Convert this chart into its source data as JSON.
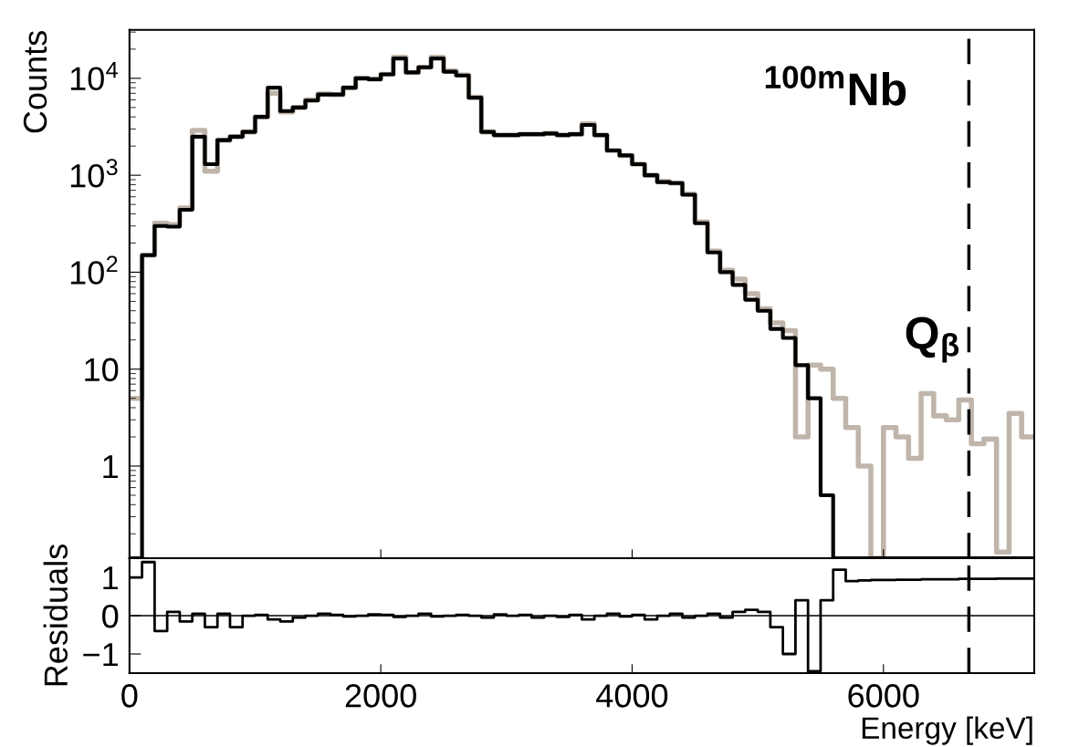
{
  "chart_data": [
    {
      "type": "histogram",
      "ylabel": "Counts",
      "log": "y",
      "tick_labels": "y",
      "grid": false,
      "legend": false,
      "bins": [
        0,
        100,
        200,
        300,
        400,
        500,
        600,
        700,
        800,
        900,
        1000,
        1100,
        1200,
        1300,
        1400,
        1500,
        1600,
        1700,
        1800,
        1900,
        2000,
        2100,
        2200,
        2300,
        2400,
        2500,
        2600,
        2700,
        2800,
        2900,
        3000,
        3100,
        3200,
        3300,
        3400,
        3500,
        3600,
        3700,
        3800,
        3900,
        4000,
        4100,
        4200,
        4300,
        4400,
        4500,
        4600,
        4700,
        4800,
        4900,
        5000,
        5100,
        5200,
        5300,
        5400,
        5500,
        5600,
        5700,
        5800,
        5900,
        6000,
        6100,
        6200,
        6300,
        6400,
        6500,
        6600,
        6700,
        6800,
        6900,
        7000,
        7100,
        7200
      ],
      "series": [
        {
          "color": "#c0b5aa",
          "values": [
            5,
            150,
            320,
            310,
            460,
            2900,
            1100,
            2300,
            2500,
            2800,
            4000,
            7000,
            4500,
            5000,
            6000,
            6900,
            6800,
            8000,
            10000,
            9800,
            11000,
            16500,
            11500,
            13000,
            16500,
            11900,
            10800,
            6400,
            2800,
            2600,
            2600,
            2650,
            2650,
            2700,
            2600,
            2650,
            3400,
            2600,
            1800,
            1600,
            1300,
            1000,
            860,
            830,
            640,
            330,
            165,
            105,
            85,
            60,
            42,
            30,
            25,
            2,
            11,
            10,
            5,
            2.5,
            1.0,
            null,
            2.5,
            2.0,
            1.2,
            5.6,
            3.3,
            3.0,
            4.8,
            1.7,
            1.9,
            0.13,
            3.5,
            2.0
          ]
        },
        {
          "color": "#000000",
          "values": [
            null,
            150,
            300,
            295,
            440,
            2500,
            1300,
            2300,
            2500,
            2800,
            4000,
            8000,
            4600,
            5000,
            5900,
            6800,
            6800,
            8000,
            10000,
            9800,
            11000,
            16000,
            11500,
            13000,
            16000,
            11700,
            10700,
            6300,
            2800,
            2600,
            2600,
            2650,
            2650,
            2700,
            2600,
            2650,
            3300,
            2600,
            1800,
            1600,
            1300,
            1000,
            850,
            830,
            630,
            320,
            160,
            100,
            74,
            52,
            40,
            26,
            21,
            11,
            5,
            0.5,
            null,
            null,
            null,
            null,
            null,
            null,
            null,
            null,
            null,
            null,
            null,
            null,
            null,
            null,
            null,
            null
          ]
        }
      ],
      "xlim": [
        0,
        7200
      ],
      "xticks": [
        0,
        2000,
        4000,
        6000
      ],
      "ylim": [
        0.112,
        31600
      ],
      "yticks": [
        1,
        10,
        {
          "value": 100,
          "label": "10$^{2}$"
        },
        {
          "value": 1000,
          "label": "10$^{3}$"
        },
        {
          "value": 10000,
          "label": "10$^{4}$"
        }
      ],
      "ref_lines": [
        {
          "axis": "x",
          "value": 6680,
          "color": "#000000",
          "line_style": "dashed"
        }
      ],
      "annotations": [
        "$^{100m}$Nb",
        {
          "text": "Q$_{β}$",
          "x": 6680,
          "y": 20
        }
      ]
    },
    {
      "type": "histogram",
      "ylabel": "Residuals",
      "xlabel": "Energy [keV]",
      "grid": false,
      "legend": false,
      "bins": [
        0,
        100,
        200,
        300,
        400,
        500,
        600,
        700,
        800,
        900,
        1000,
        1100,
        1200,
        1300,
        1400,
        1500,
        1600,
        1700,
        1800,
        1900,
        2000,
        2100,
        2200,
        2300,
        2400,
        2500,
        2600,
        2700,
        2800,
        2900,
        3000,
        3100,
        3200,
        3300,
        3400,
        3500,
        3600,
        3700,
        3800,
        3900,
        4000,
        4100,
        4200,
        4300,
        4400,
        4500,
        4600,
        4700,
        4800,
        4900,
        5000,
        5100,
        5200,
        5300,
        5400,
        5500,
        5600,
        5700,
        5800,
        5900,
        6000,
        6100,
        6200,
        6300,
        6400,
        6500,
        6600,
        6700,
        6800,
        6900,
        7000,
        7100,
        7200
      ],
      "series": [
        {
          "color": "#000000",
          "values": [
            1.0,
            1.4,
            -0.4,
            0.1,
            -0.15,
            0.05,
            -0.3,
            0.05,
            -0.3,
            0.0,
            0.02,
            -0.1,
            -0.15,
            -0.05,
            0.0,
            0.05,
            0.02,
            -0.02,
            0.0,
            0.03,
            0.02,
            -0.03,
            0.0,
            0.05,
            -0.02,
            0.0,
            0.02,
            0.0,
            -0.05,
            0.03,
            0.0,
            0.02,
            -0.05,
            0.0,
            -0.03,
            0.02,
            -0.1,
            0.0,
            0.05,
            -0.02,
            0.02,
            -0.1,
            0.0,
            0.05,
            -0.05,
            0.0,
            0.05,
            -0.05,
            0.1,
            0.15,
            0.1,
            -0.3,
            -1.0,
            0.4,
            -1.45,
            0.4,
            1.2,
            0.9,
            0.92,
            0.93,
            0.93,
            0.94,
            0.94,
            0.95,
            0.95,
            0.95,
            0.96,
            0.96,
            0.96,
            0.97,
            0.97,
            0.97
          ]
        }
      ],
      "xlim": [
        0,
        7200
      ],
      "xticks": [
        0,
        2000,
        4000,
        6000
      ],
      "ylim": [
        -1.5,
        1.5
      ],
      "yticks": [
        {
          "value": -1,
          "label": "−1"
        },
        0,
        1
      ],
      "ref_lines": [
        {
          "axis": "x",
          "value": 6680,
          "color": "#000000",
          "line_style": "dashed"
        },
        {
          "axis": "y",
          "value": 0,
          "color": "#000000",
          "line_style": "solid"
        }
      ]
    }
  ]
}
